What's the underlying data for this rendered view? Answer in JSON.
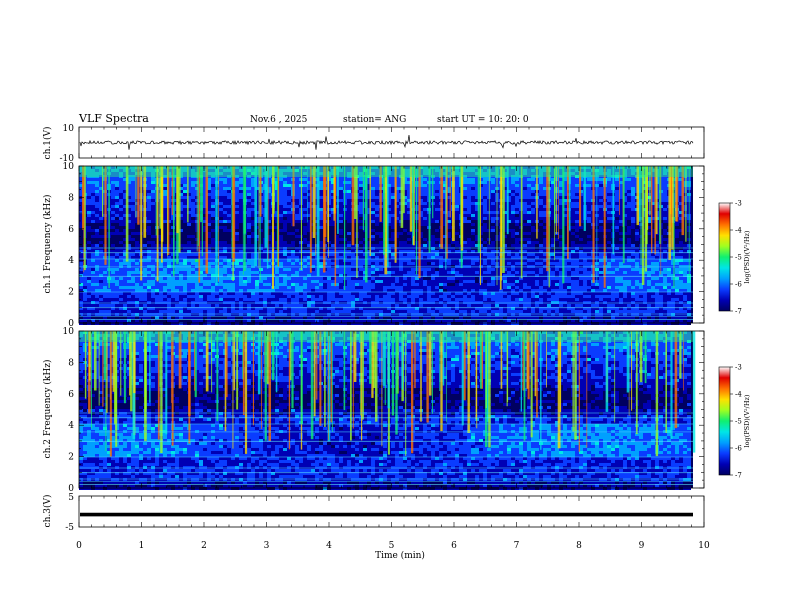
{
  "header": {
    "title": "VLF Spectra",
    "date": "Nov.6 , 2025",
    "station": "station= ANG",
    "start_time": "start UT = 10: 20: 0"
  },
  "chart_data": [
    {
      "type": "line",
      "panel": "ch1-waveform",
      "ylabel": "ch.1(V)",
      "ylim": [
        -10,
        10
      ],
      "ytick_labels": [
        "10",
        "-10"
      ],
      "baseline_value": 0,
      "color": "#000000"
    },
    {
      "type": "heatmap",
      "panel": "ch1-spectrogram",
      "ylabel": "ch.1 Frequency (kHz)",
      "ylim": [
        0,
        10
      ],
      "ytick_labels": [
        "0",
        "2",
        "4",
        "6",
        "8",
        "10"
      ],
      "xlim": [
        0,
        10
      ],
      "colorbar": {
        "label": "log(PSD)(V²/Hz)",
        "range": [
          -7,
          -3
        ],
        "tick_labels": [
          "-3",
          "-4",
          "-5",
          "-6",
          "-7"
        ]
      },
      "color_scale": [
        "#000060",
        "#0000b4",
        "#0a3cff",
        "#00a0ff",
        "#00e6e6",
        "#10f070",
        "#a0ff20",
        "#ffe000",
        "#ff7000",
        "#e00000",
        "#ffffff"
      ]
    },
    {
      "type": "heatmap",
      "panel": "ch2-spectrogram",
      "ylabel": "ch.2 Frequency (kHz)",
      "ylim": [
        0,
        10
      ],
      "ytick_labels": [
        "0",
        "2",
        "4",
        "6",
        "8",
        "10"
      ],
      "xlim": [
        0,
        10
      ],
      "colorbar": {
        "label": "log(PSD)(V²/Hz)",
        "range": [
          -7,
          -3
        ],
        "tick_labels": [
          "-3",
          "-4",
          "-5",
          "-6",
          "-7"
        ]
      }
    },
    {
      "type": "line",
      "panel": "ch3-waveform",
      "ylabel": "ch.3(V)",
      "ylim": [
        -5,
        5
      ],
      "ytick_labels": [
        "5",
        "-5"
      ],
      "baseline_value": -1,
      "color": "#000000"
    }
  ],
  "x_axis": {
    "label": "Time (min)",
    "range": [
      0,
      10
    ],
    "tick_labels": [
      "0",
      "1",
      "2",
      "3",
      "4",
      "5",
      "6",
      "7",
      "8",
      "9",
      "10"
    ]
  }
}
